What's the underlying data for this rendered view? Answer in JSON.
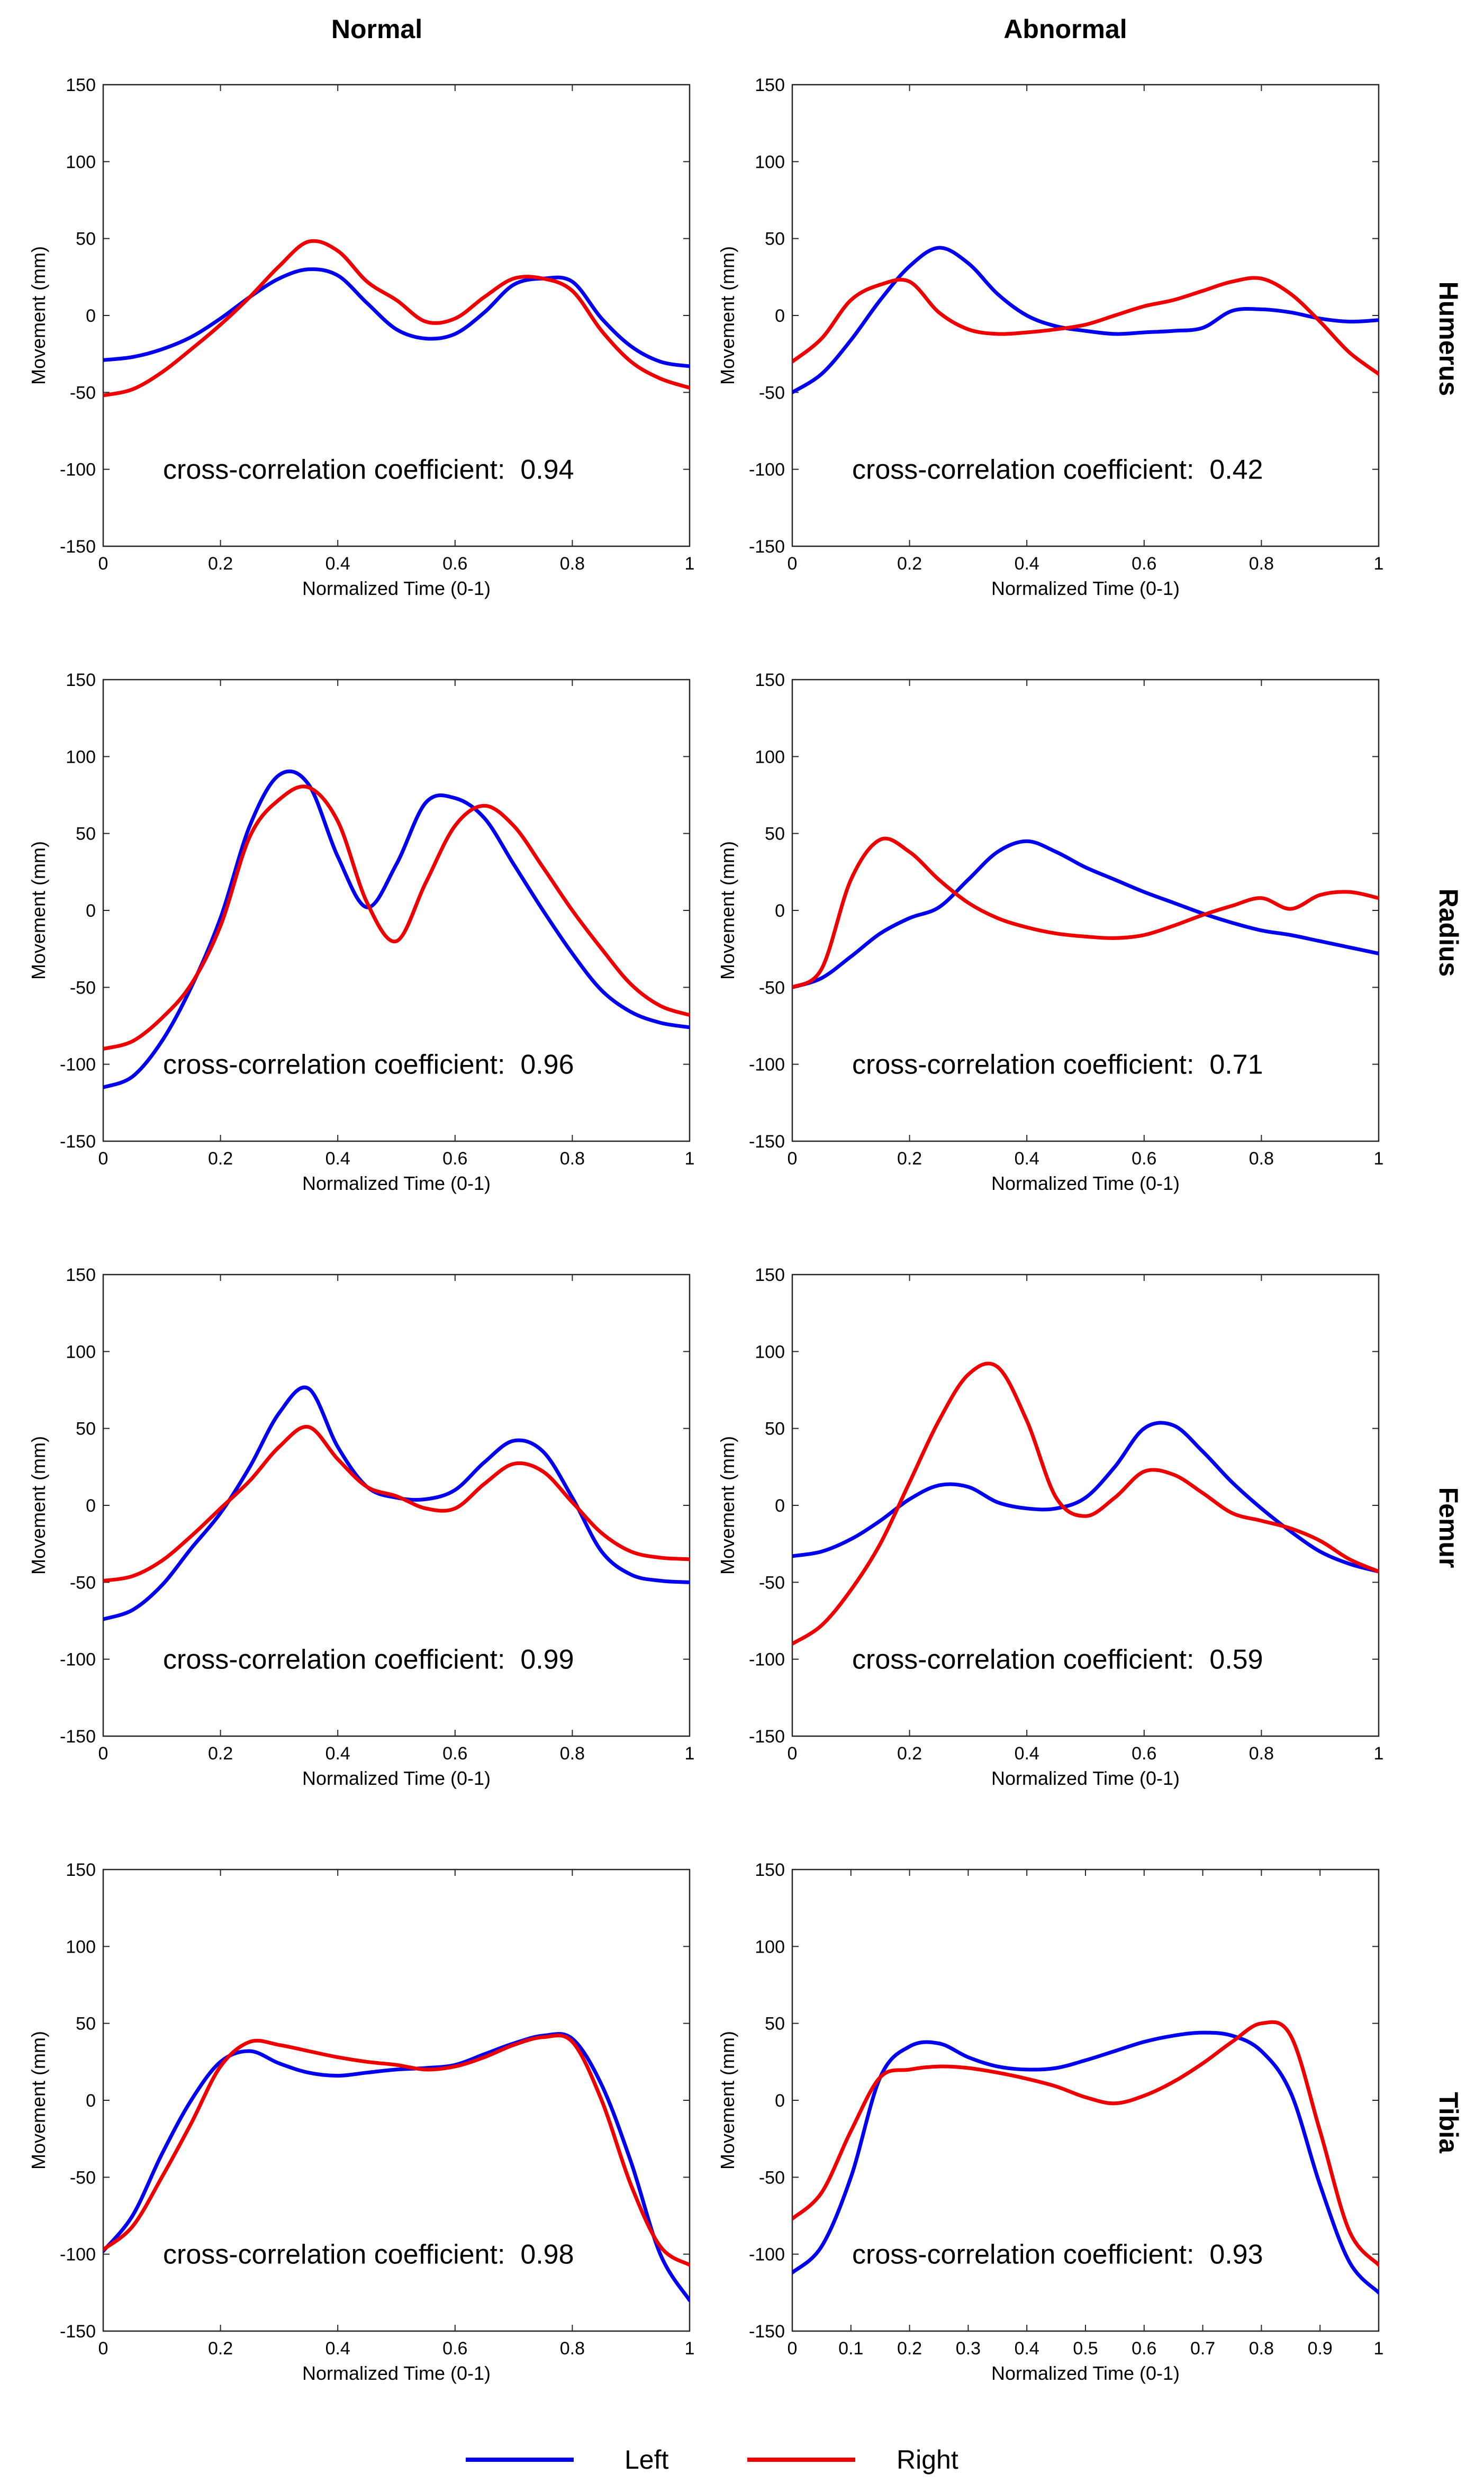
{
  "colors": {
    "left": "#0000ee",
    "right": "#ee0000",
    "axis": "#262626"
  },
  "columns": [
    "Normal",
    "Abnormal"
  ],
  "rows": [
    "Humerus",
    "Radius",
    "Femur",
    "Tibia"
  ],
  "legend": [
    {
      "label": "Left",
      "color": "#0000ee"
    },
    {
      "label": "Right",
      "color": "#ee0000"
    }
  ],
  "chart_data": [
    {
      "type": "line",
      "title": "Humerus - Normal",
      "column": "Normal",
      "row": "Humerus",
      "xlabel": "Normalized Time (0-1)",
      "ylabel": "Movement (mm)",
      "xlim": [
        0,
        1
      ],
      "ylim": [
        -150,
        150
      ],
      "xticks": [
        "0",
        "0.2",
        "0.4",
        "0.6",
        "0.8",
        "1"
      ],
      "yticks": [
        "-150",
        "-100",
        "-50",
        "0",
        "50",
        "100",
        "150"
      ],
      "annotation": "cross-correlation coefficient:  0.94",
      "series": [
        {
          "name": "Left",
          "x": [
            0,
            0.05,
            0.1,
            0.15,
            0.2,
            0.25,
            0.3,
            0.35,
            0.4,
            0.45,
            0.5,
            0.55,
            0.6,
            0.65,
            0.7,
            0.75,
            0.8,
            0.85,
            0.9,
            0.95,
            1
          ],
          "y": [
            -29,
            -27,
            -22,
            -14,
            -2,
            12,
            24,
            30,
            26,
            8,
            -9,
            -15,
            -12,
            2,
            20,
            24,
            22,
            -2,
            -20,
            -30,
            -33
          ]
        },
        {
          "name": "Right",
          "x": [
            0,
            0.05,
            0.1,
            0.15,
            0.2,
            0.25,
            0.3,
            0.35,
            0.4,
            0.45,
            0.5,
            0.55,
            0.6,
            0.65,
            0.7,
            0.75,
            0.8,
            0.85,
            0.9,
            0.95,
            1
          ],
          "y": [
            -52,
            -48,
            -37,
            -22,
            -6,
            12,
            32,
            48,
            42,
            22,
            10,
            -4,
            -2,
            12,
            24,
            24,
            16,
            -10,
            -30,
            -41,
            -47
          ]
        }
      ]
    },
    {
      "type": "line",
      "title": "Humerus - Abnormal",
      "column": "Abnormal",
      "row": "Humerus",
      "xlabel": "Normalized Time (0-1)",
      "ylabel": "Movement (mm)",
      "xlim": [
        0,
        1
      ],
      "ylim": [
        -150,
        150
      ],
      "xticks": [
        "0",
        "0.2",
        "0.4",
        "0.6",
        "0.8",
        "1"
      ],
      "yticks": [
        "-150",
        "-100",
        "-50",
        "0",
        "50",
        "100",
        "150"
      ],
      "annotation": "cross-correlation coefficient:  0.42",
      "series": [
        {
          "name": "Left",
          "x": [
            0,
            0.05,
            0.1,
            0.15,
            0.2,
            0.25,
            0.3,
            0.35,
            0.4,
            0.45,
            0.5,
            0.55,
            0.6,
            0.65,
            0.7,
            0.75,
            0.8,
            0.85,
            0.9,
            0.95,
            1
          ],
          "y": [
            -50,
            -38,
            -16,
            10,
            32,
            44,
            34,
            14,
            0,
            -7,
            -10,
            -12,
            -11,
            -10,
            -8,
            3,
            4,
            2,
            -2,
            -4,
            -3
          ]
        },
        {
          "name": "Right",
          "x": [
            0,
            0.05,
            0.1,
            0.15,
            0.2,
            0.25,
            0.3,
            0.35,
            0.4,
            0.45,
            0.5,
            0.55,
            0.6,
            0.65,
            0.7,
            0.75,
            0.8,
            0.85,
            0.9,
            0.95,
            1
          ],
          "y": [
            -30,
            -15,
            10,
            20,
            22,
            2,
            -9,
            -12,
            -11,
            -9,
            -6,
            0,
            6,
            10,
            16,
            22,
            24,
            14,
            -4,
            -24,
            -38
          ]
        }
      ]
    },
    {
      "type": "line",
      "title": "Radius - Normal",
      "column": "Normal",
      "row": "Radius",
      "xlabel": "Normalized Time (0-1)",
      "ylabel": "Movement (mm)",
      "xlim": [
        0,
        1
      ],
      "ylim": [
        -150,
        150
      ],
      "xticks": [
        "0",
        "0.2",
        "0.4",
        "0.6",
        "0.8",
        "1"
      ],
      "yticks": [
        "-150",
        "-100",
        "-50",
        "0",
        "50",
        "100",
        "150"
      ],
      "annotation": "cross-correlation coefficient:  0.96",
      "series": [
        {
          "name": "Left",
          "x": [
            0,
            0.05,
            0.1,
            0.15,
            0.2,
            0.25,
            0.3,
            0.35,
            0.4,
            0.45,
            0.5,
            0.55,
            0.6,
            0.65,
            0.7,
            0.75,
            0.8,
            0.85,
            0.9,
            0.95,
            1
          ],
          "y": [
            -115,
            -108,
            -85,
            -50,
            -5,
            55,
            88,
            82,
            35,
            2,
            30,
            70,
            73,
            60,
            30,
            0,
            -28,
            -52,
            -66,
            -73,
            -76
          ]
        },
        {
          "name": "Right",
          "x": [
            0,
            0.05,
            0.1,
            0.15,
            0.2,
            0.25,
            0.3,
            0.35,
            0.4,
            0.45,
            0.5,
            0.55,
            0.6,
            0.65,
            0.7,
            0.75,
            0.8,
            0.85,
            0.9,
            0.95,
            1
          ],
          "y": [
            -90,
            -85,
            -70,
            -48,
            -10,
            48,
            72,
            80,
            58,
            5,
            -20,
            18,
            55,
            68,
            55,
            28,
            0,
            -25,
            -48,
            -62,
            -68
          ]
        }
      ]
    },
    {
      "type": "line",
      "title": "Radius - Abnormal",
      "column": "Abnormal",
      "row": "Radius",
      "xlabel": "Normalized Time (0-1)",
      "ylabel": "Movement (mm)",
      "xlim": [
        0,
        1
      ],
      "ylim": [
        -150,
        150
      ],
      "xticks": [
        "0",
        "0.2",
        "0.4",
        "0.6",
        "0.8",
        "1"
      ],
      "yticks": [
        "-150",
        "-100",
        "-50",
        "0",
        "50",
        "100",
        "150"
      ],
      "annotation": "cross-correlation coefficient:  0.71",
      "series": [
        {
          "name": "Left",
          "x": [
            0,
            0.05,
            0.1,
            0.15,
            0.2,
            0.25,
            0.3,
            0.35,
            0.4,
            0.45,
            0.5,
            0.55,
            0.6,
            0.65,
            0.7,
            0.75,
            0.8,
            0.85,
            0.9,
            0.95,
            1
          ],
          "y": [
            -50,
            -44,
            -30,
            -15,
            -5,
            2,
            20,
            38,
            45,
            38,
            28,
            20,
            12,
            5,
            -2,
            -8,
            -13,
            -16,
            -20,
            -24,
            -28
          ]
        },
        {
          "name": "Right",
          "x": [
            0,
            0.05,
            0.1,
            0.15,
            0.2,
            0.25,
            0.3,
            0.35,
            0.4,
            0.45,
            0.5,
            0.55,
            0.6,
            0.65,
            0.7,
            0.75,
            0.8,
            0.85,
            0.9,
            0.95,
            1
          ],
          "y": [
            -50,
            -38,
            20,
            46,
            38,
            20,
            5,
            -5,
            -11,
            -15,
            -17,
            -18,
            -16,
            -10,
            -3,
            3,
            8,
            1,
            10,
            12,
            8
          ]
        }
      ]
    },
    {
      "type": "line",
      "title": "Femur - Normal",
      "column": "Normal",
      "row": "Femur",
      "xlabel": "Normalized Time (0-1)",
      "ylabel": "Movement (mm)",
      "xlim": [
        0,
        1
      ],
      "ylim": [
        -150,
        150
      ],
      "xticks": [
        "0",
        "0.2",
        "0.4",
        "0.6",
        "0.8",
        "1"
      ],
      "yticks": [
        "-150",
        "-100",
        "-50",
        "0",
        "50",
        "100",
        "150"
      ],
      "annotation": "cross-correlation coefficient:  0.99",
      "series": [
        {
          "name": "Left",
          "x": [
            0,
            0.05,
            0.1,
            0.15,
            0.2,
            0.25,
            0.3,
            0.35,
            0.4,
            0.45,
            0.5,
            0.55,
            0.6,
            0.65,
            0.7,
            0.75,
            0.8,
            0.85,
            0.9,
            0.95,
            1
          ],
          "y": [
            -74,
            -68,
            -52,
            -28,
            -5,
            25,
            60,
            76,
            38,
            12,
            5,
            4,
            10,
            28,
            42,
            35,
            5,
            -30,
            -45,
            -49,
            -50
          ]
        },
        {
          "name": "Right",
          "x": [
            0,
            0.05,
            0.1,
            0.15,
            0.2,
            0.25,
            0.3,
            0.35,
            0.4,
            0.45,
            0.5,
            0.55,
            0.6,
            0.65,
            0.7,
            0.75,
            0.8,
            0.85,
            0.9,
            0.95,
            1
          ],
          "y": [
            -49,
            -46,
            -36,
            -20,
            -2,
            16,
            38,
            51,
            30,
            12,
            6,
            -2,
            -2,
            14,
            27,
            22,
            2,
            -18,
            -30,
            -34,
            -35
          ]
        }
      ]
    },
    {
      "type": "line",
      "title": "Femur - Abnormal",
      "column": "Abnormal",
      "row": "Femur",
      "xlabel": "Normalized Time (0-1)",
      "ylabel": "Movement (mm)",
      "xlim": [
        0,
        1
      ],
      "ylim": [
        -150,
        150
      ],
      "xticks": [
        "0",
        "0.2",
        "0.4",
        "0.6",
        "0.8",
        "1"
      ],
      "yticks": [
        "-150",
        "-100",
        "-50",
        "0",
        "50",
        "100",
        "150"
      ],
      "annotation": "cross-correlation coefficient:  0.59",
      "series": [
        {
          "name": "Left",
          "x": [
            0,
            0.05,
            0.1,
            0.15,
            0.2,
            0.25,
            0.3,
            0.35,
            0.4,
            0.45,
            0.5,
            0.55,
            0.6,
            0.65,
            0.7,
            0.75,
            0.8,
            0.85,
            0.9,
            0.95,
            1
          ],
          "y": [
            -33,
            -30,
            -22,
            -10,
            4,
            13,
            12,
            2,
            -2,
            -2,
            5,
            25,
            50,
            52,
            35,
            15,
            -2,
            -17,
            -30,
            -38,
            -43
          ]
        },
        {
          "name": "Right",
          "x": [
            0,
            0.05,
            0.1,
            0.15,
            0.2,
            0.25,
            0.3,
            0.35,
            0.4,
            0.45,
            0.5,
            0.55,
            0.6,
            0.65,
            0.7,
            0.75,
            0.8,
            0.85,
            0.9,
            0.95,
            1
          ],
          "y": [
            -90,
            -78,
            -55,
            -25,
            15,
            55,
            85,
            90,
            55,
            5,
            -7,
            5,
            22,
            20,
            8,
            -5,
            -10,
            -15,
            -23,
            -35,
            -43
          ]
        }
      ]
    },
    {
      "type": "line",
      "title": "Tibia - Normal",
      "column": "Normal",
      "row": "Tibia",
      "xlabel": "Normalized Time (0-1)",
      "ylabel": "Movement (mm)",
      "xlim": [
        0,
        1
      ],
      "ylim": [
        -150,
        150
      ],
      "xticks": [
        "0",
        "0.2",
        "0.4",
        "0.6",
        "0.8",
        "1"
      ],
      "yticks": [
        "-150",
        "-100",
        "-50",
        "0",
        "50",
        "100",
        "150"
      ],
      "annotation": "cross-correlation coefficient:  0.98",
      "series": [
        {
          "name": "Left",
          "x": [
            0,
            0.05,
            0.1,
            0.15,
            0.2,
            0.25,
            0.3,
            0.35,
            0.4,
            0.45,
            0.5,
            0.55,
            0.6,
            0.65,
            0.7,
            0.75,
            0.8,
            0.85,
            0.9,
            0.95,
            1
          ],
          "y": [
            -98,
            -75,
            -35,
            0,
            25,
            32,
            24,
            18,
            16,
            18,
            20,
            21,
            23,
            30,
            37,
            42,
            40,
            10,
            -40,
            -100,
            -130
          ]
        },
        {
          "name": "Right",
          "x": [
            0,
            0.05,
            0.1,
            0.15,
            0.2,
            0.25,
            0.3,
            0.35,
            0.4,
            0.45,
            0.5,
            0.55,
            0.6,
            0.65,
            0.7,
            0.75,
            0.8,
            0.85,
            0.9,
            0.95,
            1
          ],
          "y": [
            -97,
            -82,
            -50,
            -15,
            22,
            38,
            36,
            32,
            28,
            25,
            23,
            20,
            22,
            28,
            36,
            41,
            38,
            0,
            -55,
            -95,
            -107
          ]
        }
      ]
    },
    {
      "type": "line",
      "title": "Tibia - Abnormal",
      "column": "Abnormal",
      "row": "Tibia",
      "xlabel": "Normalized Time (0-1)",
      "ylabel": "Movement (mm)",
      "xlim": [
        0,
        1
      ],
      "ylim": [
        -150,
        150
      ],
      "xticks": [
        "0",
        "0.1",
        "0.2",
        "0.3",
        "0.4",
        "0.5",
        "0.6",
        "0.7",
        "0.8",
        "0.9",
        "1"
      ],
      "yticks": [
        "-150",
        "-100",
        "-50",
        "0",
        "50",
        "100",
        "150"
      ],
      "annotation": "cross-correlation coefficient:  0.93",
      "series": [
        {
          "name": "Left",
          "x": [
            0,
            0.05,
            0.1,
            0.15,
            0.2,
            0.25,
            0.3,
            0.35,
            0.4,
            0.45,
            0.5,
            0.55,
            0.6,
            0.65,
            0.7,
            0.75,
            0.8,
            0.85,
            0.9,
            0.95,
            1
          ],
          "y": [
            -112,
            -95,
            -50,
            15,
            35,
            37,
            28,
            22,
            20,
            21,
            26,
            32,
            38,
            42,
            44,
            42,
            32,
            5,
            -55,
            -105,
            -125
          ]
        },
        {
          "name": "Right",
          "x": [
            0,
            0.05,
            0.1,
            0.15,
            0.2,
            0.25,
            0.3,
            0.35,
            0.4,
            0.45,
            0.5,
            0.55,
            0.6,
            0.65,
            0.7,
            0.75,
            0.8,
            0.85,
            0.9,
            0.95,
            1
          ],
          "y": [
            -77,
            -60,
            -20,
            15,
            20,
            22,
            21,
            18,
            14,
            9,
            2,
            -2,
            3,
            12,
            24,
            38,
            50,
            42,
            -20,
            -85,
            -107
          ]
        }
      ]
    }
  ]
}
